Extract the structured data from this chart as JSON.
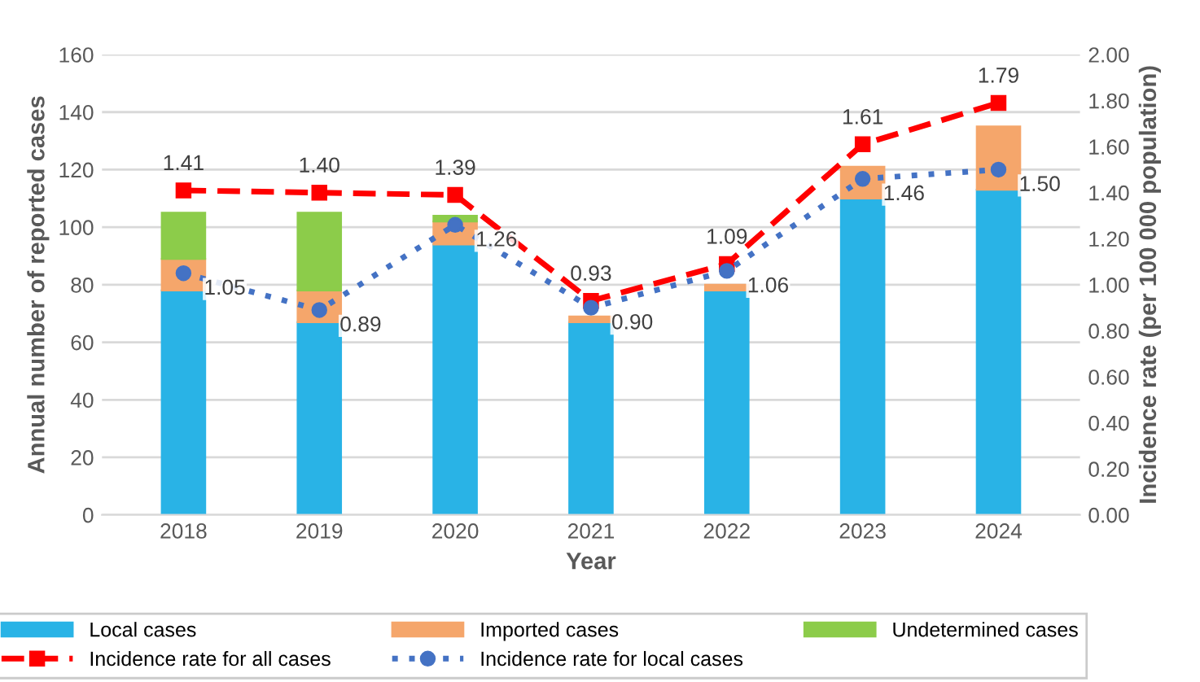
{
  "chart_data": {
    "type": "bar",
    "stacked": true,
    "xlabel": "Year",
    "ylabel": "Annual number of reported cases",
    "y2label": "Incidence rate (per 100 000 population)",
    "categories": [
      "2018",
      "2019",
      "2020",
      "2021",
      "2022",
      "2023",
      "2024"
    ],
    "series": [
      {
        "name": "Local cases",
        "color": "#29b3e6",
        "values": [
          78,
          67,
          94,
          67,
          78,
          110,
          113
        ]
      },
      {
        "name": "Imported cases",
        "color": "#f5a66b",
        "values": [
          11,
          11,
          8,
          2,
          2,
          11,
          22
        ]
      },
      {
        "name": "Undetermined cases",
        "color": "#8ccc4a",
        "values": [
          16,
          27,
          2,
          0,
          0,
          0,
          0
        ]
      },
      {
        "name": "Incidence rate for all cases",
        "type": "line",
        "axis": "y2",
        "color": "#ff0000",
        "marker": "square",
        "line_style": "dashed",
        "values": [
          1.41,
          1.4,
          1.39,
          0.93,
          1.09,
          1.61,
          1.79
        ],
        "value_labels": [
          "1.41",
          "1.40",
          "1.39",
          "0.93",
          "1.09",
          "1.61",
          "1.79"
        ]
      },
      {
        "name": "Incidence rate for local cases",
        "type": "line",
        "axis": "y2",
        "color": "#4472c4",
        "marker": "circle",
        "line_style": "dotted",
        "values": [
          1.05,
          0.89,
          1.26,
          0.9,
          1.06,
          1.46,
          1.5
        ],
        "value_labels": [
          "1.05",
          "0.89",
          "1.26",
          "0.90",
          "1.06",
          "1.46",
          "1.50"
        ]
      }
    ],
    "ylim": [
      0,
      160
    ],
    "yticks": [
      0,
      20,
      40,
      60,
      80,
      100,
      120,
      140,
      160
    ],
    "y2lim": [
      0,
      2
    ],
    "y2ticks": [
      {
        "value": 0,
        "label": "0.00"
      },
      {
        "value": 0.2,
        "label": "0.20"
      },
      {
        "value": 0.4,
        "label": "0.40"
      },
      {
        "value": 0.6,
        "label": "0.60"
      },
      {
        "value": 0.8,
        "label": "0.80"
      },
      {
        "value": 1.0,
        "label": "1.00"
      },
      {
        "value": 1.2,
        "label": "1.20"
      },
      {
        "value": 1.4,
        "label": "1.40"
      },
      {
        "value": 1.6,
        "label": "1.60"
      },
      {
        "value": 1.8,
        "label": "1.80"
      },
      {
        "value": 2.0,
        "label": "2.00"
      }
    ],
    "grid": "y",
    "legend": "bottom"
  }
}
